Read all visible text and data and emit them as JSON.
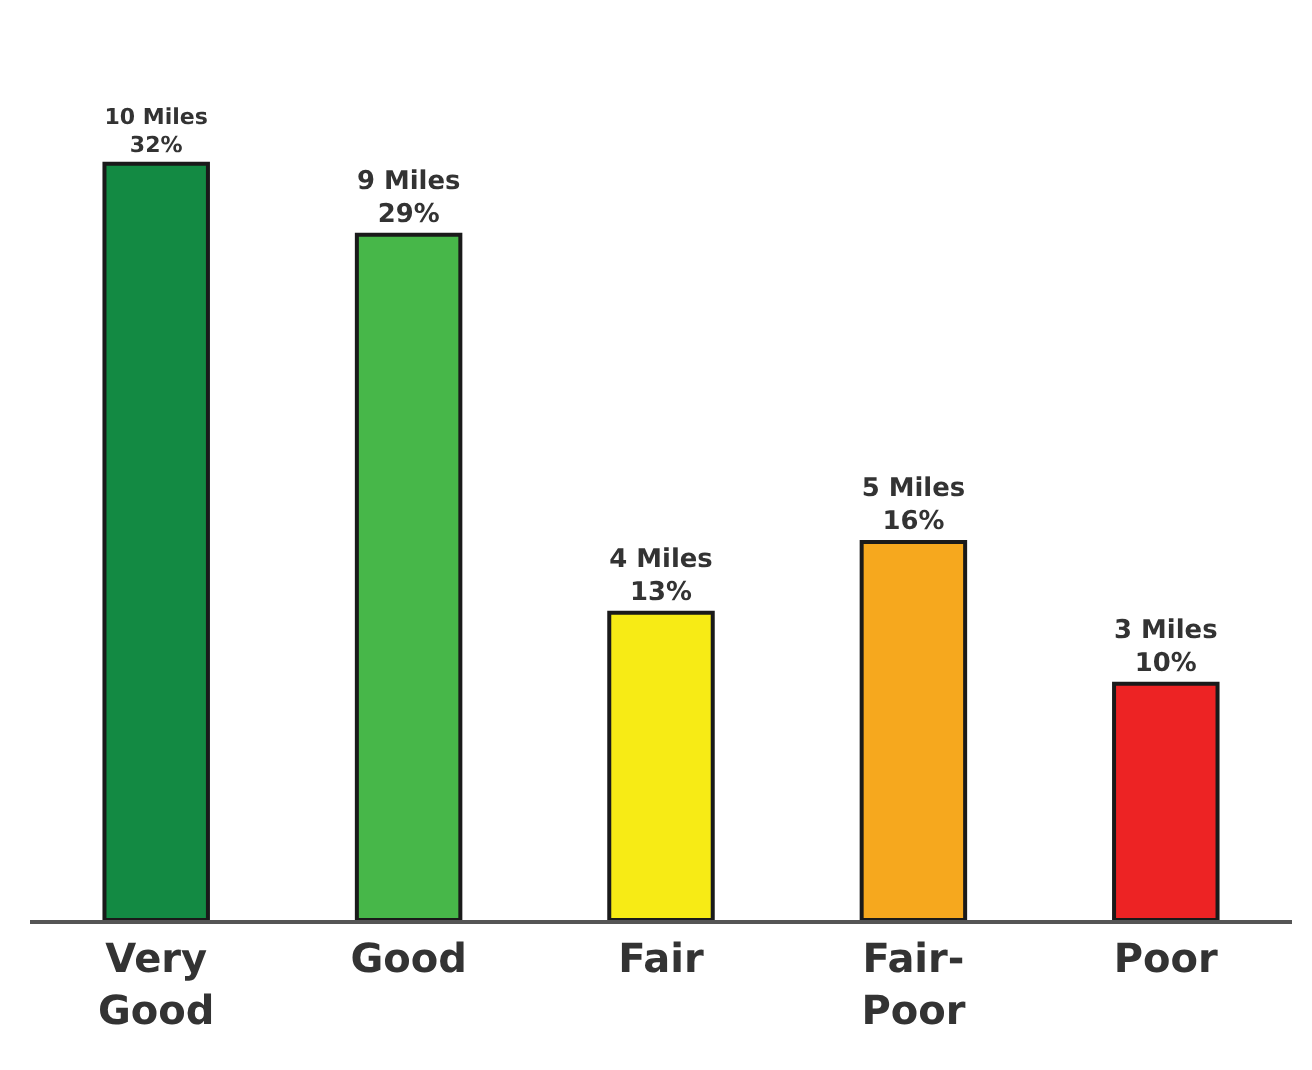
{
  "chart_data": {
    "type": "bar",
    "categories": [
      "Very Good",
      "Good",
      "Fair",
      "Fair-Poor",
      "Poor"
    ],
    "values": [
      32,
      29,
      13,
      16,
      10
    ],
    "colors": [
      "#138a43",
      "#47b749",
      "#f7eb15",
      "#f6a81e",
      "#ed2324"
    ],
    "value_labels": [
      "10 Miles\n32%",
      "9 Miles\n29%",
      "4 Miles\n13%",
      "5 Miles\n16%",
      "3 Miles\n10%"
    ],
    "tick_labels": "x"
  }
}
